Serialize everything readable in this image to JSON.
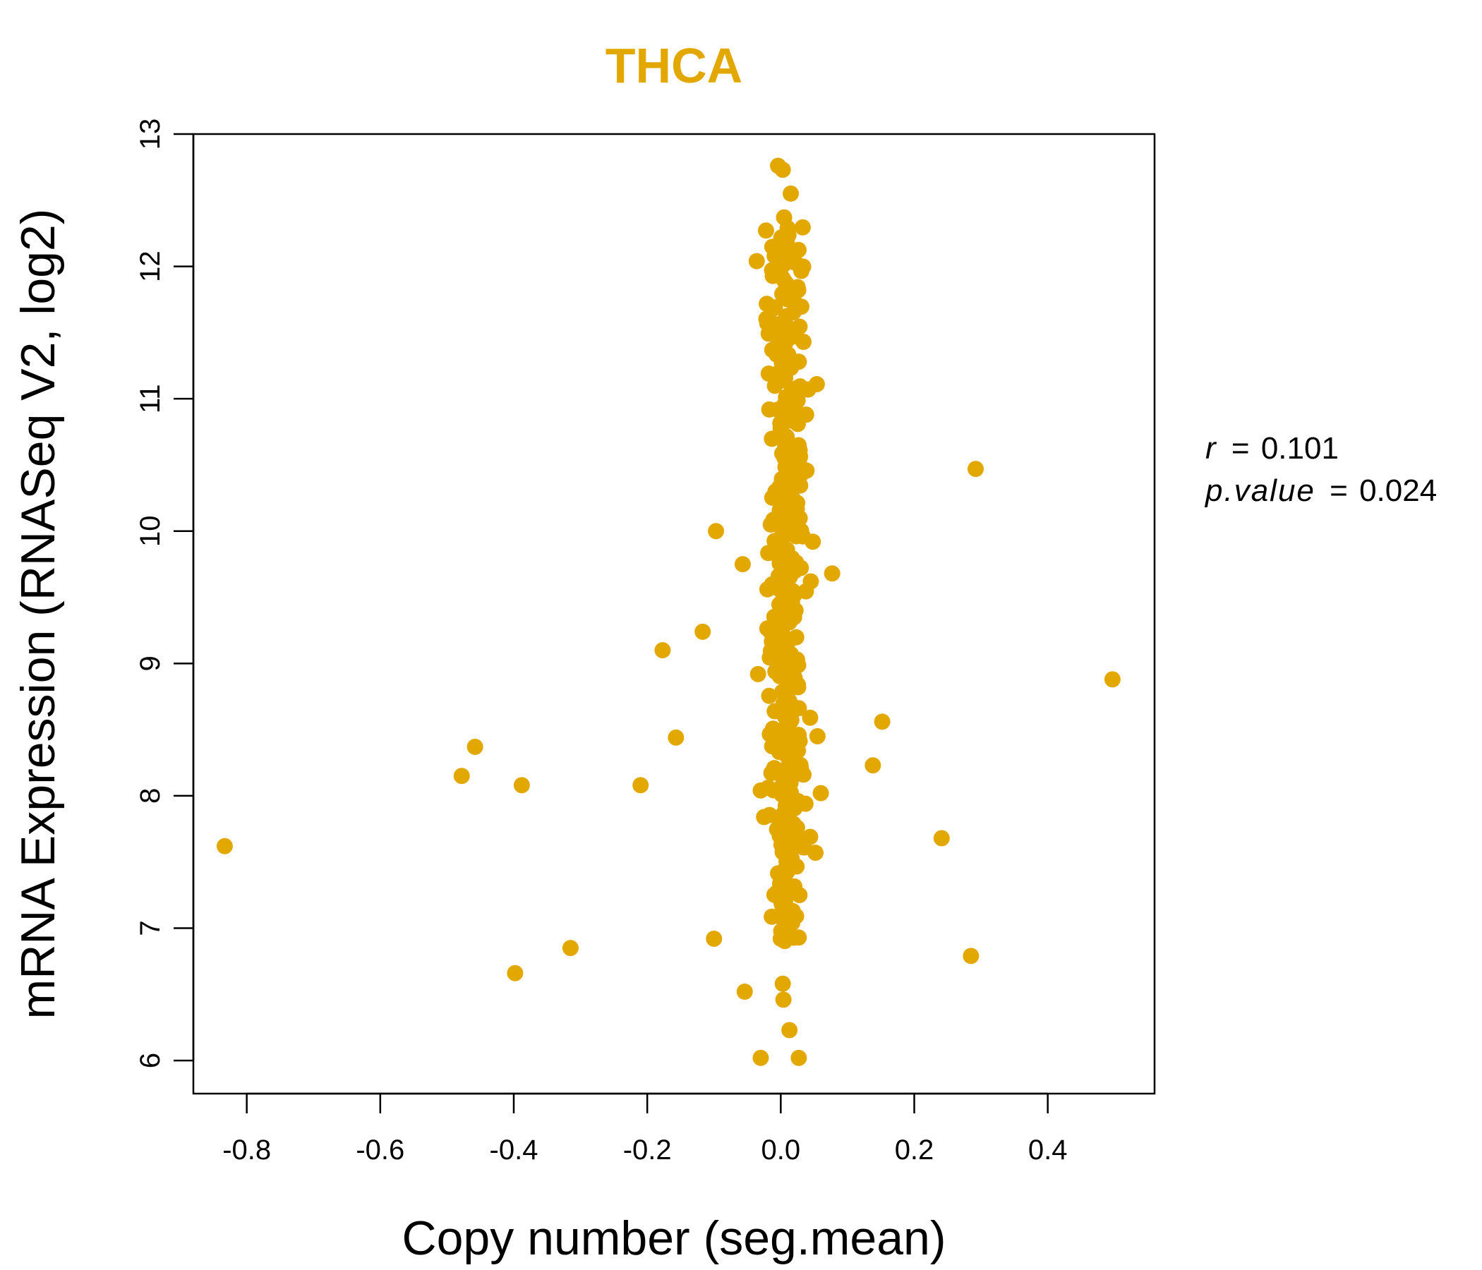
{
  "chart_data": {
    "type": "scatter",
    "title": "THCA",
    "xlabel": "Copy number (seg.mean)",
    "ylabel": "mRNA Expression (RNASeq V2, log2)",
    "xlim": [
      -0.88,
      0.56
    ],
    "ylim": [
      5.75,
      13.0
    ],
    "x_ticks": [
      -0.8,
      -0.6,
      -0.4,
      -0.2,
      0.0,
      0.2,
      0.4
    ],
    "x_tick_labels": [
      "-0.8",
      "-0.6",
      "-0.4",
      "-0.2",
      "0.0",
      "0.2",
      "0.4"
    ],
    "y_ticks": [
      6,
      7,
      8,
      9,
      10,
      11,
      12,
      13
    ],
    "y_tick_labels": [
      "6",
      "7",
      "8",
      "9",
      "10",
      "11",
      "12",
      "13"
    ],
    "grid": false,
    "point_color": "#E3A800",
    "annotation": {
      "r_label": "r",
      "r_value": "0.101",
      "p_label": "p.value",
      "p_value": "0.024"
    },
    "series": [
      {
        "name": "THCA",
        "outliers": [
          [
            -0.833,
            7.62
          ],
          [
            -0.478,
            8.15
          ],
          [
            -0.458,
            8.37
          ],
          [
            -0.398,
            6.66
          ],
          [
            -0.388,
            8.08
          ],
          [
            -0.315,
            6.85
          ],
          [
            -0.21,
            8.08
          ],
          [
            -0.177,
            9.1
          ],
          [
            -0.157,
            8.44
          ],
          [
            -0.117,
            9.24
          ],
          [
            -0.097,
            10.0
          ],
          [
            -0.1,
            6.92
          ],
          [
            -0.057,
            9.75
          ],
          [
            -0.054,
            6.52
          ],
          [
            -0.036,
            12.04
          ],
          [
            -0.034,
            8.92
          ],
          [
            -0.03,
            6.02
          ],
          [
            -0.03,
            8.04
          ],
          [
            -0.025,
            7.84
          ],
          [
            -0.018,
            11.19
          ],
          [
            -0.02,
            9.56
          ],
          [
            -0.015,
            10.05
          ],
          [
            -0.012,
            8.49
          ],
          [
            0.0,
            6.92
          ],
          [
            0.003,
            6.58
          ],
          [
            0.004,
            6.46
          ],
          [
            0.013,
            6.23
          ],
          [
            0.027,
            6.02
          ],
          [
            0.023,
            7.09
          ],
          [
            0.028,
            7.25
          ],
          [
            0.045,
            9.62
          ],
          [
            0.048,
            9.92
          ],
          [
            0.054,
            11.11
          ],
          [
            0.055,
            8.45
          ],
          [
            0.052,
            7.57
          ],
          [
            0.06,
            8.02
          ],
          [
            0.077,
            9.68
          ],
          [
            0.138,
            8.23
          ],
          [
            0.152,
            8.56
          ],
          [
            0.241,
            7.68
          ],
          [
            0.285,
            6.79
          ],
          [
            0.292,
            10.47
          ],
          [
            0.497,
            8.88
          ],
          [
            -0.004,
            12.76
          ],
          [
            0.003,
            12.73
          ],
          [
            0.015,
            12.55
          ],
          [
            0.005,
            12.37
          ],
          [
            0.034,
            11.43
          ],
          [
            0.041,
            11.07
          ],
          [
            0.038,
            10.88
          ],
          [
            0.044,
            8.59
          ],
          [
            0.034,
            8.16
          ],
          [
            0.03,
            8.21
          ],
          [
            0.037,
            7.94
          ],
          [
            0.044,
            7.69
          ],
          [
            0.035,
            7.61
          ],
          [
            0.027,
            11.28
          ],
          [
            0.033,
            9.96
          ],
          [
            0.023,
            10.0
          ],
          [
            0.02,
            9.35
          ]
        ],
        "band": {
          "y_start": 6.9,
          "y_end": 12.3,
          "count": 300,
          "x_center": 0.008,
          "x_spread": 0.032,
          "seed": 12345
        }
      }
    ]
  }
}
